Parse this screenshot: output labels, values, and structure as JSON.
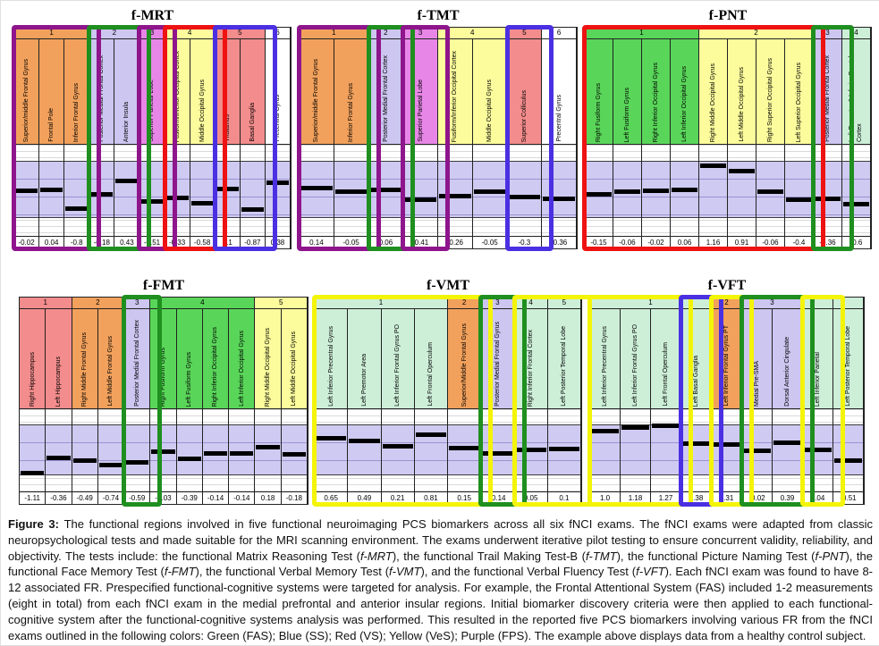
{
  "palette": {
    "orange": "#F2A15C",
    "lavender": "#CCC6F0",
    "magenta": "#E886E8",
    "yellow": "#FCFC9C",
    "salmon": "#F38C8C",
    "green": "#59D659",
    "mint": "#CDEFD8",
    "white": "#FFFFFF",
    "boxPurple": "#8E158C",
    "boxGreen": "#1F8F1F",
    "boxRed": "#EE1212",
    "boxBlue": "#4A30E2",
    "boxYellow": "#F4F409"
  },
  "panels": [
    {
      "title": "f-MRT",
      "groups": [
        {
          "label": "1",
          "span": 3,
          "bg": "orange"
        },
        {
          "label": "2",
          "span": 2,
          "bg": "lavender"
        },
        {
          "label": "3",
          "span": 1,
          "bg": "magenta"
        },
        {
          "label": "4",
          "span": 2,
          "bg": "yellow"
        },
        {
          "label": "5",
          "span": 2,
          "bg": "salmon"
        },
        {
          "label": "6",
          "span": 1,
          "bg": "white"
        }
      ],
      "columns": [
        {
          "label": "Superior/middle Frontal Gyrus",
          "bg": "orange",
          "value": "-0.02"
        },
        {
          "label": "Frontal Pole",
          "bg": "orange",
          "value": "0.04"
        },
        {
          "label": "Inferior Frontal Gyrus",
          "bg": "orange",
          "value": "-0.8"
        },
        {
          "label": "Posterior Medial Frontal Cortex",
          "bg": "lavender",
          "value": "-0.18"
        },
        {
          "label": "Anterior Insula",
          "bg": "lavender",
          "value": "0.43"
        },
        {
          "label": "Superior Parietal Lobe",
          "bg": "magenta",
          "value": "-0.51"
        },
        {
          "label": "Fusiform/Inferior Occipital Cortex",
          "bg": "yellow",
          "value": "-0.33"
        },
        {
          "label": "Middle Occipital Gyrus",
          "bg": "yellow",
          "value": "-0.58"
        },
        {
          "label": "Thalamus",
          "bg": "salmon",
          "value": "0.1"
        },
        {
          "label": "Basal Ganglia",
          "bg": "salmon",
          "value": "-0.87"
        },
        {
          "label": "Precentral Gyrus",
          "bg": "white",
          "value": "0.38"
        }
      ],
      "boxes": [
        {
          "start": 0,
          "span": 3,
          "color": "boxPurple"
        },
        {
          "start": 3,
          "span": 2,
          "color": "boxGreen"
        },
        {
          "start": 5,
          "span": 1,
          "color": "boxPurple"
        },
        {
          "start": 6,
          "span": 2,
          "color": "boxRed"
        },
        {
          "start": 8,
          "span": 2,
          "color": "boxBlue"
        }
      ]
    },
    {
      "title": "f-TMT",
      "groups": [
        {
          "label": "1",
          "span": 2,
          "bg": "orange"
        },
        {
          "label": "2",
          "span": 1,
          "bg": "lavender"
        },
        {
          "label": "3",
          "span": 1,
          "bg": "magenta"
        },
        {
          "label": "4",
          "span": 2,
          "bg": "yellow"
        },
        {
          "label": "5",
          "span": 1,
          "bg": "salmon"
        },
        {
          "label": "6",
          "span": 1,
          "bg": "white"
        }
      ],
      "columns": [
        {
          "label": "Superior/middle Frontal Gyrus",
          "bg": "orange",
          "value": "0.14"
        },
        {
          "label": "Inferior Frontal Gyrus",
          "bg": "orange",
          "value": "-0.05"
        },
        {
          "label": "Posterior Medial Frontal Cortex",
          "bg": "lavender",
          "value": "0.06"
        },
        {
          "label": "Superior Parietal Lobe",
          "bg": "magenta",
          "value": "-0.41"
        },
        {
          "label": "Fusiform/Inferior Occipital Cortex",
          "bg": "yellow",
          "value": "-0.26"
        },
        {
          "label": "Middle Occipital Gyrus",
          "bg": "yellow",
          "value": "-0.05"
        },
        {
          "label": "Superior Colliculus",
          "bg": "salmon",
          "value": "-0.3"
        },
        {
          "label": "Precentral Gyrus",
          "bg": "white",
          "value": "-0.36"
        }
      ],
      "boxes": [
        {
          "start": 0,
          "span": 2,
          "color": "boxPurple"
        },
        {
          "start": 2,
          "span": 1,
          "color": "boxGreen"
        },
        {
          "start": 3,
          "span": 1,
          "color": "boxPurple"
        },
        {
          "start": 6,
          "span": 1,
          "color": "boxBlue"
        }
      ]
    },
    {
      "title": "f-PNT",
      "groups": [
        {
          "label": "1",
          "span": 4,
          "bg": "green"
        },
        {
          "label": "2",
          "span": 4,
          "bg": "yellow"
        },
        {
          "label": "3",
          "span": 1,
          "bg": "lavender"
        },
        {
          "label": "4",
          "span": 1,
          "bg": "mint"
        }
      ],
      "columns": [
        {
          "label": "Right Fusiform Gyrus",
          "bg": "green",
          "value": "-0.15"
        },
        {
          "label": "Left Fusiform Gyrus",
          "bg": "green",
          "value": "-0.06"
        },
        {
          "label": "Right Inferior Occipital Gyrus",
          "bg": "green",
          "value": "-0.02"
        },
        {
          "label": "Left Inferior Occipital Gyrus",
          "bg": "green",
          "value": "0.06"
        },
        {
          "label": "Right Middle Occipital Gyrus",
          "bg": "yellow",
          "value": "1.16"
        },
        {
          "label": "Left Middle Occipital Gyrus",
          "bg": "yellow",
          "value": "0.91"
        },
        {
          "label": "Right Superior Occipital Gyrus",
          "bg": "yellow",
          "value": "-0.06"
        },
        {
          "label": "Left Superior Occipital Gyrus",
          "bg": "yellow",
          "value": "-0.4"
        },
        {
          "label": "Posterior Medial Frontal Cortex",
          "bg": "lavender",
          "value": "-0.36"
        },
        {
          "label": "Left Premotor & Inferior Frontal Cortex",
          "bg": "mint",
          "value": "-0.6"
        }
      ],
      "boxes": [
        {
          "start": 0,
          "span": 8,
          "color": "boxRed"
        },
        {
          "start": 8,
          "span": 1,
          "color": "boxGreen"
        }
      ]
    },
    {
      "title": "f-FMT",
      "groups": [
        {
          "label": "1",
          "span": 2,
          "bg": "salmon"
        },
        {
          "label": "2",
          "span": 2,
          "bg": "orange"
        },
        {
          "label": "3",
          "span": 1,
          "bg": "lavender"
        },
        {
          "label": "4",
          "span": 4,
          "bg": "green"
        },
        {
          "label": "5",
          "span": 2,
          "bg": "yellow"
        }
      ],
      "columns": [
        {
          "label": "Right Hippocampus",
          "bg": "salmon",
          "value": "-1.11"
        },
        {
          "label": "Left Hippocampus",
          "bg": "salmon",
          "value": "-0.36"
        },
        {
          "label": "Right Middle Frontal Gyrus",
          "bg": "orange",
          "value": "-0.49"
        },
        {
          "label": "Left Middle Frontal Gyrus",
          "bg": "orange",
          "value": "-0.74"
        },
        {
          "label": "Posterior Medial Frontal Cortex",
          "bg": "lavender",
          "value": "-0.59"
        },
        {
          "label": "Right Fusiform Gyrus",
          "bg": "green",
          "value": "-0.03"
        },
        {
          "label": "Left Fusiform Gyrus",
          "bg": "green",
          "value": "-0.39"
        },
        {
          "label": "Right Inferior Occipital Gyrus",
          "bg": "green",
          "value": "-0.14"
        },
        {
          "label": "Left Inferior Occipital Gyrus",
          "bg": "green",
          "value": "-0.14"
        },
        {
          "label": "Right Middle Occipital Gyrus",
          "bg": "yellow",
          "value": "0.18"
        },
        {
          "label": "Left Middle Occipital Gyrus",
          "bg": "yellow",
          "value": "-0.18"
        }
      ],
      "boxes": [
        {
          "start": 4,
          "span": 1,
          "color": "boxGreen"
        }
      ]
    },
    {
      "title": "f-VMT",
      "groups": [
        {
          "label": "1",
          "span": 4,
          "bg": "mint"
        },
        {
          "label": "2",
          "span": 1,
          "bg": "orange"
        },
        {
          "label": "3",
          "span": 1,
          "bg": "lavender"
        },
        {
          "label": "4",
          "span": 1,
          "bg": "mint"
        },
        {
          "label": "5",
          "span": 1,
          "bg": "mint"
        }
      ],
      "columns": [
        {
          "label": "Left Inferior Precentral Gyrus",
          "bg": "mint",
          "value": "0.65"
        },
        {
          "label": "Left Premotor Area",
          "bg": "mint",
          "value": "0.49"
        },
        {
          "label": "Left Inferior Frontal Gyrus PO",
          "bg": "mint",
          "value": "0.21"
        },
        {
          "label": "Left Frontal Operculum",
          "bg": "mint",
          "value": "0.81"
        },
        {
          "label": "Superior/Middle Frontal Gyrus",
          "bg": "orange",
          "value": "0.15"
        },
        {
          "label": "Posterior Medial Frontal Gyrus",
          "bg": "lavender",
          "value": "-0.14"
        },
        {
          "label": "Right Inferior Frontal Cortex",
          "bg": "mint",
          "value": "0.05"
        },
        {
          "label": "Left Posterior Temporal Lobe",
          "bg": "mint",
          "value": "0.1"
        }
      ],
      "boxes": [
        {
          "start": 0,
          "span": 5,
          "color": "boxYellow"
        },
        {
          "start": 5,
          "span": 1,
          "color": "boxGreen"
        },
        {
          "start": 6,
          "span": 2,
          "color": "boxYellow"
        }
      ]
    },
    {
      "title": "f-VFT",
      "groups": [
        {
          "label": "1",
          "span": 4,
          "bg": "mint"
        },
        {
          "label": "2",
          "span": 1,
          "bg": "orange"
        },
        {
          "label": "3",
          "span": 2,
          "bg": "lavender"
        },
        {
          "label": "",
          "span": 1,
          "bg": "mint"
        },
        {
          "label": "",
          "span": 1,
          "bg": "mint"
        }
      ],
      "columns": [
        {
          "label": "Left Inferior Precentral Gyrus",
          "bg": "mint",
          "value": "1.0"
        },
        {
          "label": "Left Inferior Frontal Gyrus PO",
          "bg": "mint",
          "value": "1.18"
        },
        {
          "label": "Left Frontal Operculum",
          "bg": "mint",
          "value": "1.27"
        },
        {
          "label": "Left Basal Ganglia",
          "bg": "mint",
          "value": "0.38"
        },
        {
          "label": "Left Inferior Frontal Gyrus PT",
          "bg": "orange",
          "value": "0.31"
        },
        {
          "label": "Medial Pre-SMA",
          "bg": "lavender",
          "value": "-0.02"
        },
        {
          "label": "Dorsal Anterior Cingulate",
          "bg": "lavender",
          "value": "0.39"
        },
        {
          "label": "Left Inferior Parietal",
          "bg": "mint",
          "value": "0.04"
        },
        {
          "label": "Left Posterior Temporal Lobe",
          "bg": "mint",
          "value": "-0.51"
        }
      ],
      "boxes": [
        {
          "start": 0,
          "span": 3,
          "color": "boxYellow"
        },
        {
          "start": 3,
          "span": 1,
          "color": "boxBlue"
        },
        {
          "start": 4,
          "span": 1,
          "color": "boxYellow"
        },
        {
          "start": 5,
          "span": 2,
          "color": "boxGreen"
        },
        {
          "start": 7,
          "span": 1,
          "color": "boxYellow"
        }
      ]
    }
  ],
  "caption": {
    "segments": [
      {
        "t": "Figure 3: ",
        "b": true
      },
      {
        "t": "The functional regions involved in five functional neuroimaging PCS biomarkers across all six fNCI exams. The fNCI exams were adapted from classic neuropsychological tests and made suitable for the MRI scanning environment. The exams underwent iterative pilot testing to ensure concurrent validity, reliability, and objectivity. The tests include: the functional Matrix Reasoning Test ("
      },
      {
        "t": "f-MRT",
        "i": true
      },
      {
        "t": "), the functional Trail Making Test-B ("
      },
      {
        "t": "f-TMT",
        "i": true
      },
      {
        "t": "), the functional Picture Naming Test ("
      },
      {
        "t": "f-PNT",
        "i": true
      },
      {
        "t": "), the functional Face Memory Test ("
      },
      {
        "t": "f-FMT",
        "i": true
      },
      {
        "t": "), the functional Verbal Memory Test ("
      },
      {
        "t": "f-VMT",
        "i": true
      },
      {
        "t": "), and the functional Verbal Fluency Test ("
      },
      {
        "t": "f-VFT",
        "i": true
      },
      {
        "t": "). Each fNCI exam was found to have 8-12 associated FR. Prespecified functional-cognitive systems were targeted for analysis. For example, the Frontal Attentional System (FAS) included 1-2 measurements (eight in total) from each fNCI exam in the medial prefrontal and anterior insular regions. Initial biomarker discovery criteria were then applied to each functional-cognitive system after the functional-cognitive systems analysis was performed. This resulted in the reported five PCS biomarkers involving various FR from the fNCI exams outlined in the following colors: Green (FAS); Blue (SS); Red (VS); Yellow (VeS); Purple (FPS). The example above displays data from a healthy control subject."
      }
    ]
  }
}
